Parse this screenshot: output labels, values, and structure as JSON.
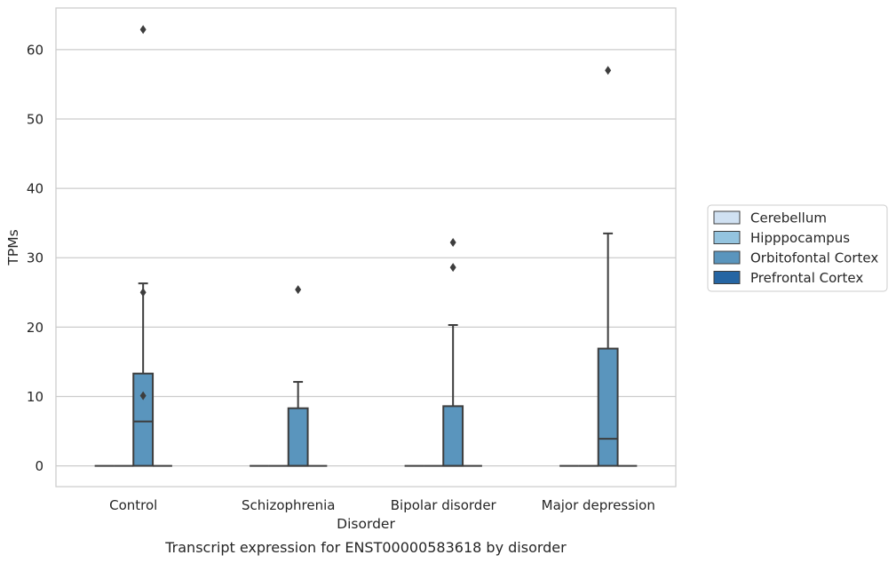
{
  "chart_data": {
    "type": "box",
    "caption": "Transcript expression for ENST00000583618 by disorder",
    "xlabel": "Disorder",
    "ylabel": "TPMs",
    "ylim": [
      -3,
      66
    ],
    "yticks": [
      0,
      10,
      20,
      30,
      40,
      50,
      60
    ],
    "grid": "horizontal",
    "legend_position": "right",
    "categories": [
      "Control",
      "Schizophrenia",
      "Bipolar disorder",
      "Major depression"
    ],
    "series": [
      {
        "name": "Cerebellum",
        "color": "#d0e1f2",
        "boxes": [
          {
            "q1": 0,
            "median": 0,
            "q3": 0,
            "whisker_low": 0,
            "whisker_high": 0,
            "outliers": []
          },
          {
            "q1": 0,
            "median": 0,
            "q3": 0,
            "whisker_low": 0,
            "whisker_high": 0,
            "outliers": []
          },
          {
            "q1": 0,
            "median": 0,
            "q3": 0,
            "whisker_low": 0,
            "whisker_high": 0,
            "outliers": []
          },
          {
            "q1": 0,
            "median": 0,
            "q3": 0,
            "whisker_low": 0,
            "whisker_high": 0,
            "outliers": []
          }
        ]
      },
      {
        "name": "Hipppocampus",
        "color": "#94c4df",
        "boxes": [
          {
            "q1": 0,
            "median": 0,
            "q3": 0,
            "whisker_low": 0,
            "whisker_high": 0,
            "outliers": []
          },
          {
            "q1": 0,
            "median": 0,
            "q3": 0,
            "whisker_low": 0,
            "whisker_high": 0,
            "outliers": []
          },
          {
            "q1": 0,
            "median": 0,
            "q3": 0,
            "whisker_low": 0,
            "whisker_high": 0,
            "outliers": []
          },
          {
            "q1": 0,
            "median": 0,
            "q3": 0,
            "whisker_low": 0,
            "whisker_high": 0,
            "outliers": []
          }
        ]
      },
      {
        "name": "Orbitofontal Cortex",
        "color": "#5a95bd",
        "boxes": [
          {
            "q1": 0,
            "median": 6.4,
            "q3": 13.3,
            "whisker_low": 0,
            "whisker_high": 26.3,
            "outliers": [
              25.0,
              10.1,
              62.9
            ]
          },
          {
            "q1": 0,
            "median": 0,
            "q3": 8.3,
            "whisker_low": 0,
            "whisker_high": 12.1,
            "outliers": [
              25.4
            ]
          },
          {
            "q1": 0,
            "median": 0,
            "q3": 8.6,
            "whisker_low": 0,
            "whisker_high": 20.3,
            "outliers": [
              32.2,
              28.6
            ]
          },
          {
            "q1": 0,
            "median": 3.9,
            "q3": 16.9,
            "whisker_low": 0,
            "whisker_high": 33.5,
            "outliers": [
              57.0
            ]
          }
        ]
      },
      {
        "name": "Prefrontal Cortex",
        "color": "#2565a3",
        "boxes": [
          {
            "q1": 0,
            "median": 0,
            "q3": 0,
            "whisker_low": 0,
            "whisker_high": 0,
            "outliers": []
          },
          {
            "q1": 0,
            "median": 0,
            "q3": 0,
            "whisker_low": 0,
            "whisker_high": 0,
            "outliers": []
          },
          {
            "q1": 0,
            "median": 0,
            "q3": 0,
            "whisker_low": 0,
            "whisker_high": 0,
            "outliers": []
          },
          {
            "q1": 0,
            "median": 0,
            "q3": 0,
            "whisker_low": 0,
            "whisker_high": 0,
            "outliers": []
          }
        ]
      }
    ]
  }
}
